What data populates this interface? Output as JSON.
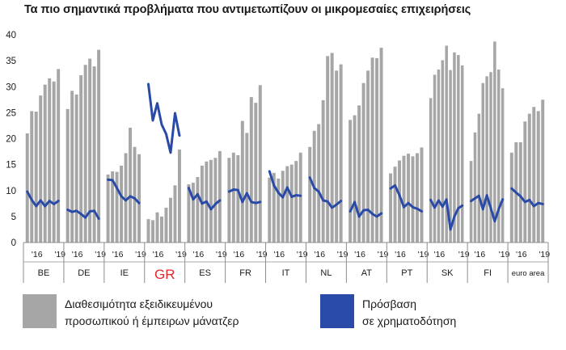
{
  "chart_data": {
    "type": "bar",
    "title": "Τα πιο σημαντικά προβλήματα που αντιμετωπίζουν οι μικρομεσαίες επιχειρήσεις",
    "ylim": [
      0,
      40
    ],
    "yticks": [
      0,
      5,
      10,
      15,
      20,
      25,
      30,
      35,
      40
    ],
    "grid": false,
    "legend_position": "bottom",
    "highlight_group": "GR",
    "colors": {
      "bars": "#a6a6a6",
      "line": "#2a4aa8",
      "highlight": "#e0282c"
    },
    "series": [
      {
        "name": "Διαθεσιμότητα εξειδικευμένου προσωπικού ή έμπειρων μάνατζερ",
        "kind": "bar",
        "groups": [
          {
            "label": "BE",
            "ticks": [
              "'16",
              "'19"
            ],
            "values": [
              21,
              25.3,
              25.2,
              28.3,
              30.4,
              31.6,
              31.0,
              33.4
            ]
          },
          {
            "label": "DE",
            "ticks": [
              "'16",
              "'19"
            ],
            "values": [
              25.7,
              29.2,
              28.5,
              32.2,
              34.2,
              35.4,
              33.9,
              37.1
            ]
          },
          {
            "label": "IE",
            "ticks": [
              "'16",
              "'19"
            ],
            "values": [
              13.1,
              13.7,
              13.6,
              14.8,
              17.2,
              22.1,
              18.4,
              17.0
            ]
          },
          {
            "label": "GR",
            "ticks": [
              "'16",
              "'19"
            ],
            "values": [
              4.5,
              4.3,
              5.8,
              5.0,
              6.7,
              8.6,
              11.0,
              17.9
            ]
          },
          {
            "label": "ES",
            "ticks": [
              "'16",
              "'19"
            ],
            "values": [
              11.2,
              11.5,
              12.6,
              14.8,
              15.6,
              15.9,
              16.3,
              17.6
            ]
          },
          {
            "label": "FR",
            "ticks": [
              "'16",
              "'19"
            ],
            "values": [
              16.3,
              17.3,
              16.8,
              23.4,
              21.1,
              28.0,
              26.9,
              30.3
            ]
          },
          {
            "label": "IT",
            "ticks": [
              "'16",
              "'19"
            ],
            "values": [
              12.5,
              13.4,
              12.3,
              13.8,
              14.7,
              15.0,
              15.7,
              17.3
            ]
          },
          {
            "label": "NL",
            "ticks": [
              "'16",
              "'19"
            ],
            "values": [
              18.4,
              21.5,
              22.8,
              27.4,
              35.9,
              36.5,
              33.1,
              34.3
            ]
          },
          {
            "label": "AT",
            "ticks": [
              "'16",
              "'19"
            ],
            "values": [
              23.6,
              24.5,
              26.4,
              30.7,
              33.1,
              35.6,
              35.5,
              37.5
            ]
          },
          {
            "label": "PT",
            "ticks": [
              "'16",
              "'19"
            ],
            "values": [
              13.3,
              14.6,
              15.8,
              16.7,
              17.1,
              16.6,
              17.2,
              18.3
            ]
          },
          {
            "label": "SK",
            "ticks": [
              "'16",
              "'19"
            ],
            "values": [
              27.8,
              32.3,
              33.3,
              35.1,
              37.9,
              33.2,
              36.6,
              36.1,
              34.1
            ]
          },
          {
            "label": "FI",
            "ticks": [
              "'16",
              "'19"
            ],
            "values": [
              15.7,
              21.2,
              24.8,
              30.7,
              32.0,
              32.8,
              38.7,
              33.3,
              29.7
            ]
          },
          {
            "label": "euro area",
            "ticks": [
              "'16",
              "'19"
            ],
            "values": [
              17.3,
              19.3,
              19.3,
              23.3,
              24.8,
              26.1,
              25.3,
              27.5
            ]
          }
        ]
      },
      {
        "name": "Πρόσβαση σε χρηματοδότηση",
        "kind": "line",
        "groups": [
          {
            "label": "BE",
            "values": [
              9.8,
              8.2,
              7.0,
              8.1,
              7.0,
              8.0,
              7.4,
              8.0
            ]
          },
          {
            "label": "DE",
            "values": [
              6.3,
              5.9,
              6.1,
              5.5,
              4.8,
              6.0,
              6.1,
              4.6
            ]
          },
          {
            "label": "IE",
            "values": [
              12.1,
              12.0,
              10.5,
              8.9,
              8.1,
              8.9,
              8.5,
              7.6
            ]
          },
          {
            "label": "GR",
            "values": [
              30.5,
              23.5,
              26.8,
              22.7,
              20.9,
              17.3,
              24.9,
              20.6
            ]
          },
          {
            "label": "ES",
            "values": [
              10.5,
              8.3,
              9.3,
              7.5,
              7.9,
              6.4,
              7.4,
              8.1
            ]
          },
          {
            "label": "FR",
            "values": [
              9.8,
              10.2,
              10.1,
              7.8,
              9.5,
              7.8,
              7.6,
              7.8
            ]
          },
          {
            "label": "IT",
            "values": [
              13.7,
              11.0,
              9.6,
              8.7,
              10.6,
              8.8,
              9.1,
              9.0
            ]
          },
          {
            "label": "NL",
            "values": [
              12.5,
              10.5,
              9.8,
              8.1,
              7.9,
              6.7,
              7.3,
              8.0
            ]
          },
          {
            "label": "AT",
            "values": [
              6.0,
              7.8,
              5.0,
              6.2,
              6.3,
              5.5,
              5.0,
              5.6
            ]
          },
          {
            "label": "PT",
            "values": [
              10.4,
              11.0,
              9.1,
              6.8,
              7.6,
              6.8,
              6.5,
              6.0
            ]
          },
          {
            "label": "SK",
            "values": [
              8.2,
              6.7,
              8.1,
              6.9,
              8.3,
              2.5,
              5.0,
              6.6,
              7.1
            ]
          },
          {
            "label": "FI",
            "values": [
              8.0,
              8.5,
              9.0,
              6.4,
              9.1,
              6.6,
              4.1,
              6.4,
              8.3
            ]
          },
          {
            "label": "euro area",
            "values": [
              10.4,
              9.6,
              8.9,
              7.8,
              8.2,
              7.0,
              7.6,
              7.4
            ]
          }
        ]
      }
    ]
  }
}
